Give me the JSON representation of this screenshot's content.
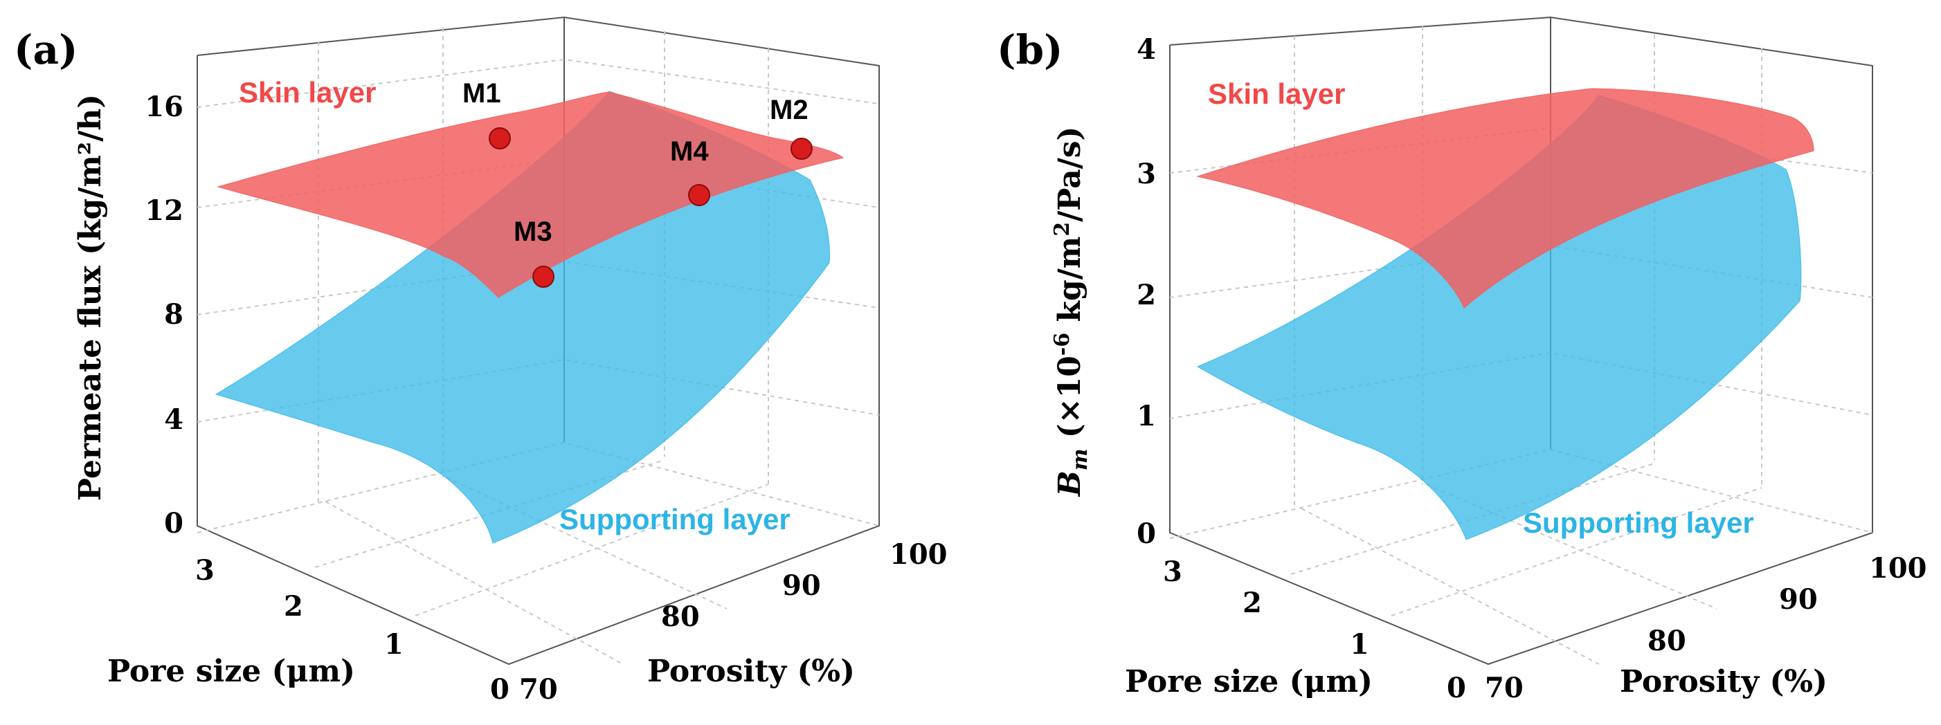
{
  "chart_data": [
    {
      "panel_label": "(a)",
      "type": "surface3d",
      "zlabel": "Permeate flux (kg/m²/h)",
      "xlabel": "Porosity (%)",
      "ylabel": "Pore size (μm)",
      "zticks": [
        "0",
        "4",
        "8",
        "12",
        "16"
      ],
      "porosity_ticks": [
        "70",
        "80",
        "90",
        "100"
      ],
      "pore_ticks": [
        "0",
        "1",
        "2",
        "3"
      ],
      "zlim": [
        0,
        18
      ],
      "series": [
        {
          "name": "Skin layer",
          "color": "#f26060",
          "corners": {
            "porosity70_pore3": 13.0,
            "porosity100_pore3": 16.5,
            "porosity100_pore0": 14.5,
            "porosity70_pore0": 9.0
          }
        },
        {
          "name": "Supporting layer",
          "color": "#3dbbe8",
          "corners": {
            "porosity70_pore3": 5.2,
            "porosity100_pore3": 16.5,
            "porosity100_pore0": 10.0,
            "porosity70_pore0": 0.0
          }
        }
      ],
      "markers": [
        {
          "label": "M1",
          "value": 14.8
        },
        {
          "label": "M2",
          "value": 14.3
        },
        {
          "label": "M3",
          "value": 9.5
        },
        {
          "label": "M4",
          "value": 12.6
        }
      ]
    },
    {
      "panel_label": "(b)",
      "type": "surface3d",
      "zlabel_main": "B",
      "zlabel_sub": "m",
      "zlabel_rest": " (×10",
      "zlabel_exp": "-6",
      "zlabel_units": " kg/m",
      "zlabel_units_exp": "2",
      "zlabel_units_end": "/Pa/s)",
      "xlabel": "Porosity (%)",
      "ylabel": "Pore size (μm)",
      "zticks": [
        "0",
        "1",
        "2",
        "3",
        "4"
      ],
      "porosity_ticks": [
        "70",
        "80",
        "90",
        "100"
      ],
      "pore_ticks": [
        "0",
        "1",
        "2",
        "3"
      ],
      "zlim": [
        0,
        4
      ],
      "series": [
        {
          "name": "Skin layer",
          "color": "#f26060",
          "corners": {
            "porosity70_pore3": 3.05,
            "porosity100_pore3": 3.8,
            "porosity100_pore0": 3.3,
            "porosity70_pore0": 2.0
          }
        },
        {
          "name": "Supporting layer",
          "color": "#3dbbe8",
          "corners": {
            "porosity70_pore3": 1.45,
            "porosity100_pore3": 3.5,
            "porosity100_pore0": 2.0,
            "porosity70_pore0": 0.0
          }
        }
      ]
    }
  ]
}
